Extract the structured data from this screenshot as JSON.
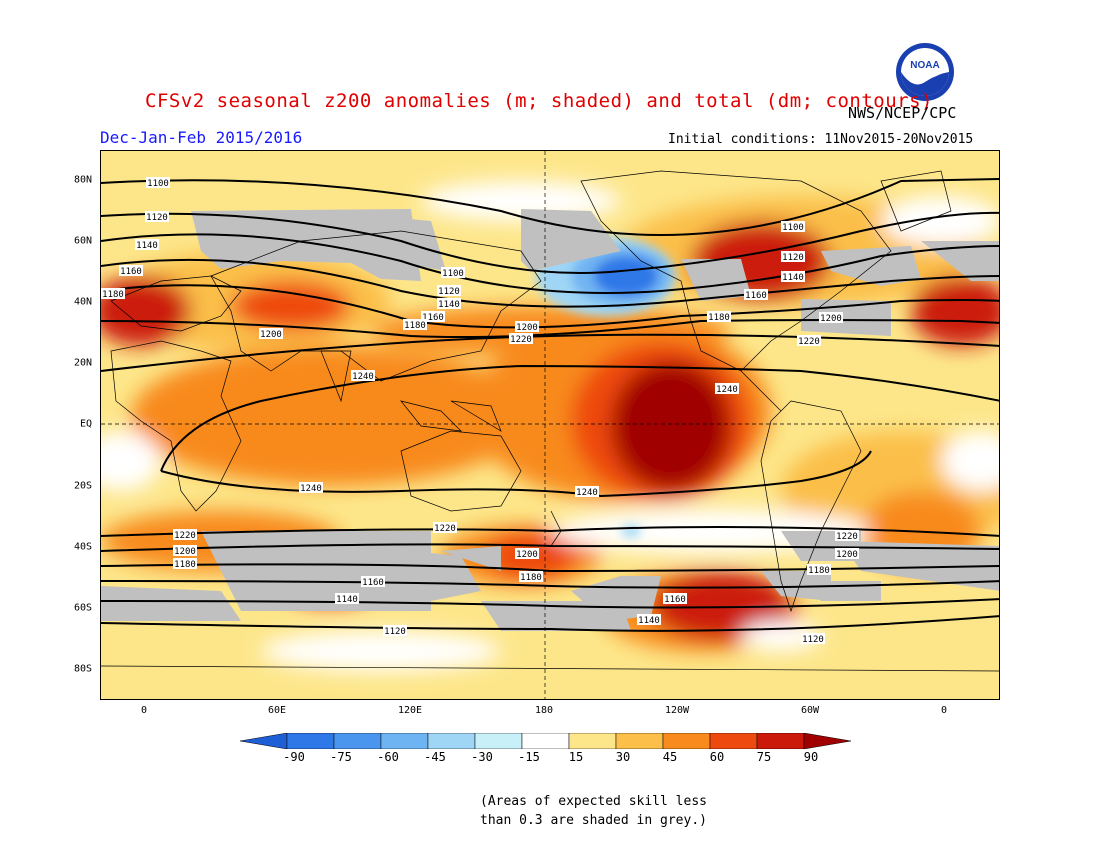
{
  "title": "CFSv2 seasonal z200 anomalies (m; shaded) and total (dm; contours)",
  "period": "Dec-Jan-Feb 2015/2016",
  "agency": "NWS/NCEP/CPC",
  "initial_conditions": "Initial conditions: 11Nov2015-20Nov2015",
  "logo_text": "NOAA",
  "lat_labels": [
    "80N",
    "60N",
    "40N",
    "20N",
    "EQ",
    "20S",
    "40S",
    "60S",
    "80S"
  ],
  "lon_labels": [
    "0",
    "60E",
    "120E",
    "180",
    "120W",
    "60W",
    "0"
  ],
  "colorbar": {
    "ticks": [
      "-90",
      "-75",
      "-60",
      "-45",
      "-30",
      "-15",
      "15",
      "30",
      "45",
      "60",
      "75",
      "90"
    ],
    "colors": [
      "#1f5fd6",
      "#2f78e8",
      "#4a96ee",
      "#6fb4f2",
      "#9fd6f6",
      "#c8f0f8",
      "#ffffff",
      "#fde68a",
      "#fbbf4a",
      "#f88a1e",
      "#ee4a10",
      "#cc1a0a",
      "#a00000"
    ]
  },
  "note_lines": [
    "(Areas of expected skill less",
    "than 0.3 are shaded in grey.)"
  ],
  "contour_labels": [
    "1100",
    "1120",
    "1140",
    "1160",
    "1180",
    "1200",
    "1220",
    "1240"
  ],
  "skill_mask_color": "#c0c0c0"
}
